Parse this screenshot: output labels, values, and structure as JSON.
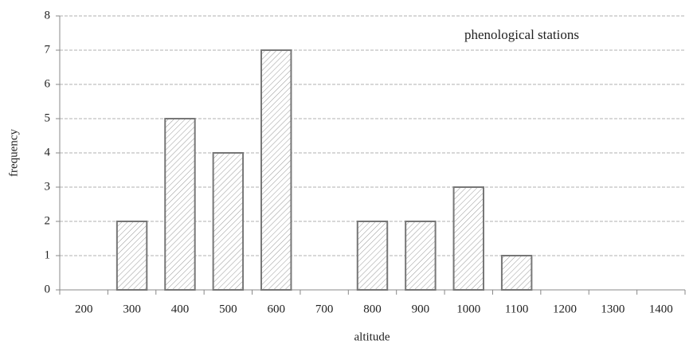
{
  "chart_data": {
    "type": "bar",
    "annotation": "phenological stations",
    "x_label": "altitude",
    "y_label": "frequency",
    "categories": [
      "200",
      "300",
      "400",
      "500",
      "600",
      "700",
      "800",
      "900",
      "1000",
      "1100",
      "1200",
      "1300",
      "1400"
    ],
    "values": [
      0,
      2,
      5,
      4,
      7,
      0,
      2,
      2,
      3,
      1,
      0,
      0,
      0
    ],
    "color": "#777777",
    "ylim": [
      0,
      8
    ],
    "yticks": [
      0,
      1,
      2,
      3,
      4,
      5,
      6,
      7,
      8
    ],
    "grid": true
  }
}
